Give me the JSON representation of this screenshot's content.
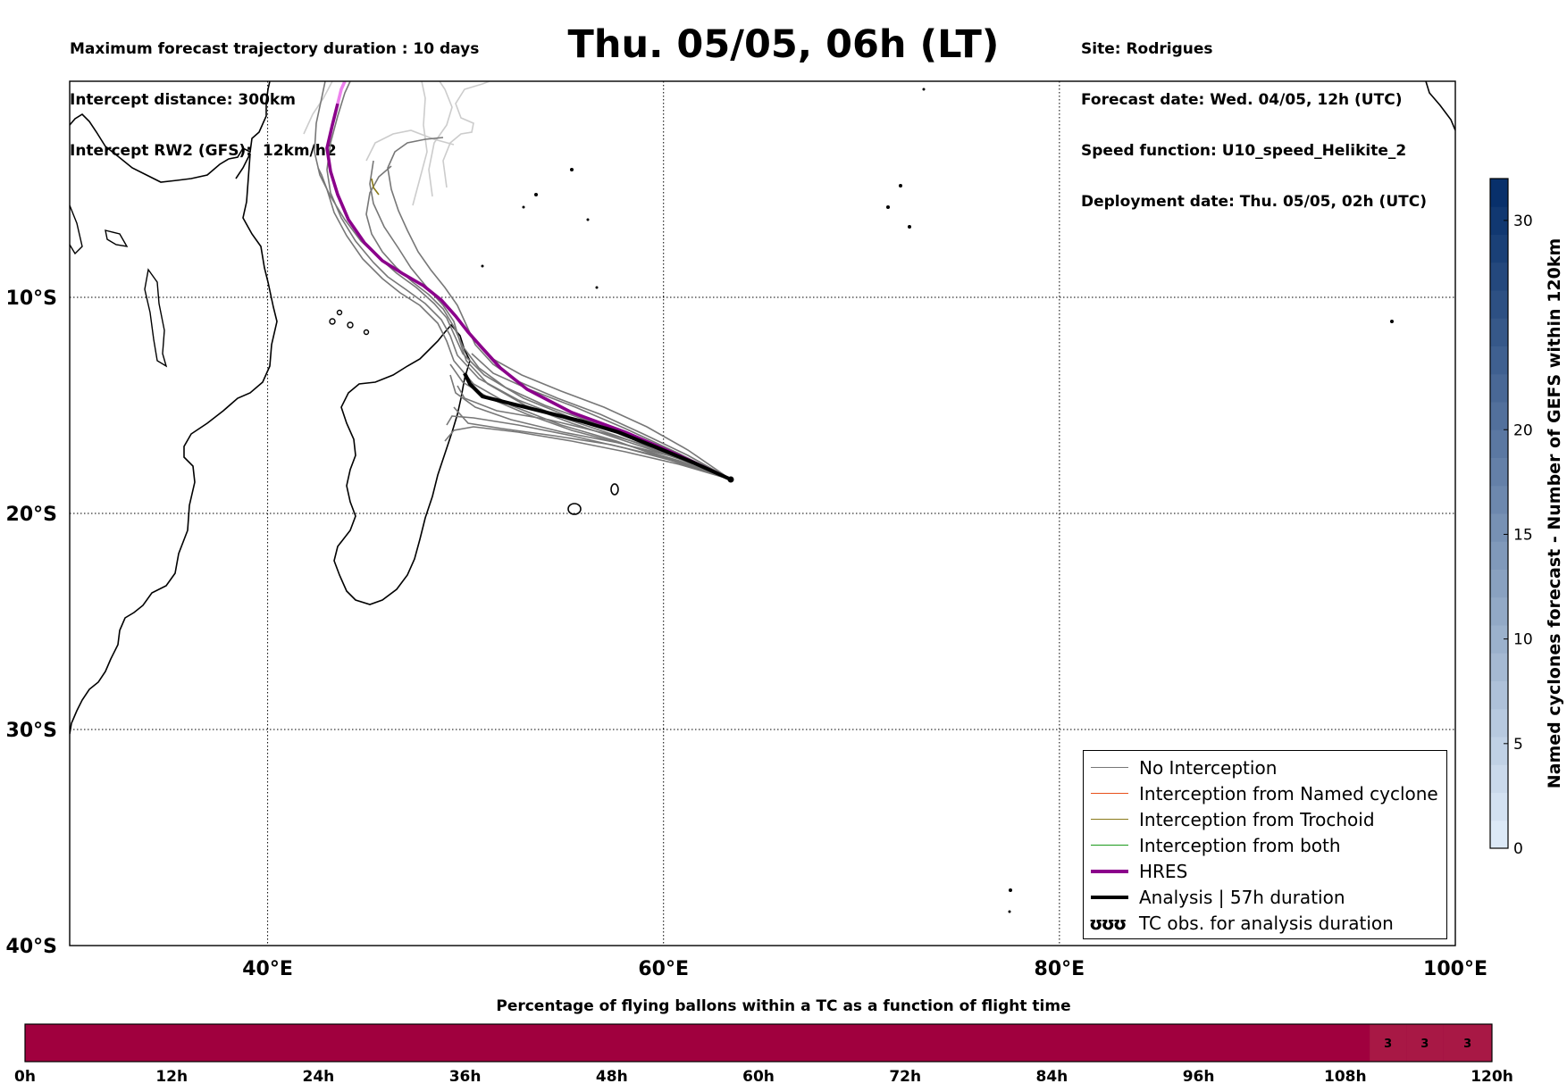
{
  "header_left": [
    "Maximum forecast trajectory duration : 10 days",
    "Intercept distance: 300km",
    "Intercept RW2 (GFS):  12km/h2"
  ],
  "title": "Thu. 05/05, 06h (LT)",
  "header_right": [
    "Site: Rodrigues",
    "Forecast date: Wed. 04/05, 12h (UTC)",
    "Speed function: U10_speed_Helikite_2",
    "Deployment date: Thu. 05/05, 02h (UTC)"
  ],
  "map": {
    "lon_range": [
      30,
      100
    ],
    "lat_range": [
      0,
      -40
    ],
    "lon_ticks": [
      {
        "value": 40,
        "label": "40°E"
      },
      {
        "value": 60,
        "label": "60°E"
      },
      {
        "value": 80,
        "label": "80°E"
      },
      {
        "value": 100,
        "label": "100°E"
      }
    ],
    "lat_ticks": [
      {
        "value": -10,
        "label": "10°S"
      },
      {
        "value": -20,
        "label": "20°S"
      },
      {
        "value": -30,
        "label": "30°S"
      },
      {
        "value": -40,
        "label": "40°S"
      }
    ],
    "launch_site": {
      "name": "Rodrigues",
      "lon": 63.4,
      "lat": -19.7
    },
    "colors": {
      "no_interception": "#777777",
      "ghost": "#cccccc",
      "named_cyclone": "#e8501a",
      "trochoid": "#8a7a1a",
      "both": "#1a9a1a",
      "hres": "#8b008b",
      "analysis": "#000000"
    }
  },
  "legend": [
    {
      "key": "no_interception",
      "label": "No Interception",
      "style": "thin"
    },
    {
      "key": "named_cyclone",
      "label": "Interception from Named cyclone",
      "style": "thin"
    },
    {
      "key": "trochoid",
      "label": "Interception from Trochoid",
      "style": "thin"
    },
    {
      "key": "both",
      "label": "Interception from both",
      "style": "thin"
    },
    {
      "key": "hres",
      "label": "HRES",
      "style": "thick"
    },
    {
      "key": "analysis",
      "label": "Analysis | 57h duration",
      "style": "thick"
    },
    {
      "key": "tc_obs",
      "label": "TC obs. for analysis duration",
      "style": "symbol",
      "symbol": "ʊʊʊ"
    }
  ],
  "colorbar": {
    "label": "Named cyclones forecast - Number of GEFS within 120km",
    "min": 0,
    "max": 32,
    "ticks": [
      0,
      5,
      10,
      15,
      20,
      30
    ],
    "color_low": "#dce9f7",
    "color_high": "#08306b"
  },
  "timebar": {
    "title": "Percentage of flying ballons within a TC as a function of flight time",
    "hours_max": 120,
    "ticks": [
      "0h",
      "12h",
      "24h",
      "36h",
      "48h",
      "60h",
      "72h",
      "84h",
      "96h",
      "108h",
      "120h"
    ],
    "base_color": "#a0003e",
    "segments": [
      {
        "from_h": 110,
        "to_h": 113,
        "value": "3",
        "color": "#a81845"
      },
      {
        "from_h": 113,
        "to_h": 116,
        "value": "3",
        "color": "#a81845"
      },
      {
        "from_h": 116,
        "to_h": 120,
        "value": "3",
        "color": "#a81845"
      }
    ]
  }
}
